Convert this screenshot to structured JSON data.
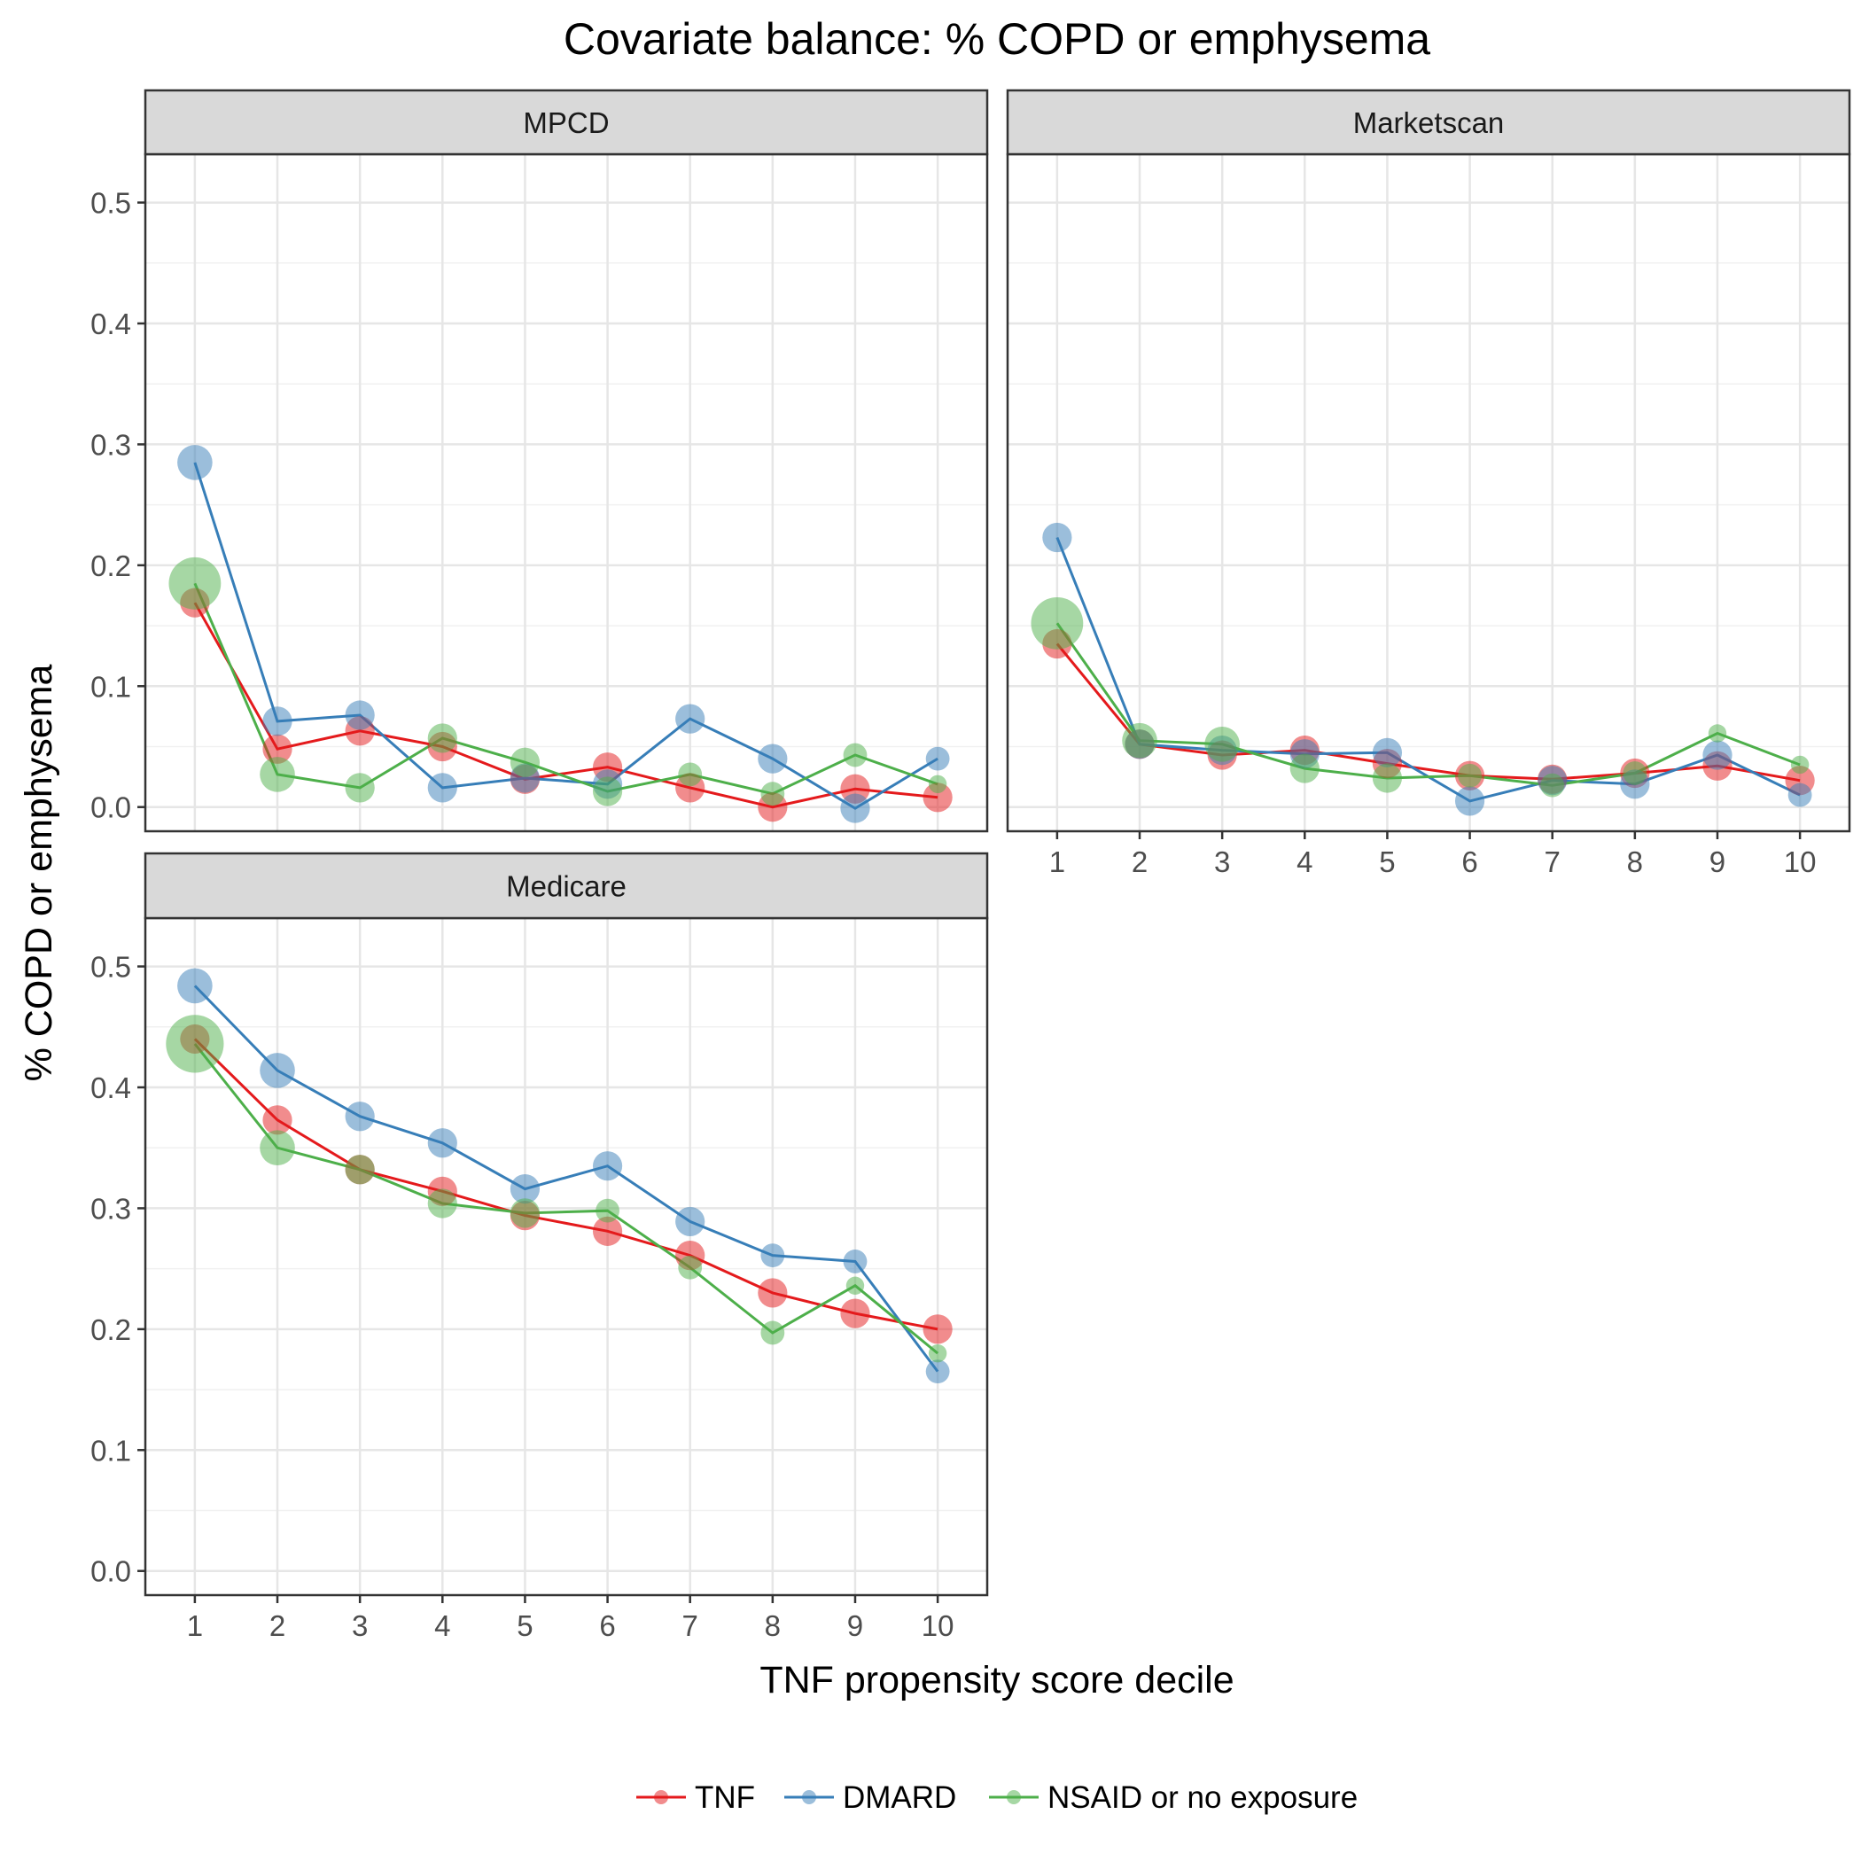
{
  "chart_data": {
    "type": "scatter",
    "title": "Covariate balance: % COPD or emphysema",
    "xlabel": "TNF propensity score decile",
    "ylabel": "% COPD or emphysema",
    "x": [
      1,
      2,
      3,
      4,
      5,
      6,
      7,
      8,
      9,
      10
    ],
    "x_tick_labels": [
      "1",
      "2",
      "3",
      "4",
      "5",
      "6",
      "7",
      "8",
      "9",
      "10"
    ],
    "ylim": [
      -0.02,
      0.54
    ],
    "y_ticks": [
      0.0,
      0.1,
      0.2,
      0.3,
      0.4,
      0.5
    ],
    "y_tick_labels": [
      "0.0",
      "0.1",
      "0.2",
      "0.3",
      "0.4",
      "0.5"
    ],
    "grid": true,
    "legend_position": "bottom",
    "colors": {
      "TNF": "#e41a1c",
      "DMARD": "#377eb8",
      "NSAID or no exposure": "#4daf4a"
    },
    "legend": [
      "TNF",
      "DMARD",
      "NSAID or no exposure"
    ],
    "panels": [
      {
        "name": "MPCD",
        "series": [
          {
            "name": "TNF",
            "values": [
              0.169,
              0.048,
              0.063,
              0.05,
              0.023,
              0.033,
              0.016,
              0.0,
              0.015,
              0.008
            ],
            "sizes": [
              3,
              3,
              3,
              3,
              3,
              3,
              3,
              3,
              3,
              3
            ]
          },
          {
            "name": "DMARD",
            "values": [
              0.285,
              0.071,
              0.076,
              0.016,
              0.024,
              0.019,
              0.073,
              0.04,
              -0.001,
              0.04
            ],
            "sizes": [
              4,
              3,
              3,
              3,
              3,
              3,
              3,
              3,
              3,
              2
            ]
          },
          {
            "name": "NSAID or no exposure",
            "values": [
              0.185,
              0.027,
              0.016,
              0.057,
              0.037,
              0.013,
              0.027,
              0.011,
              0.043,
              0.019
            ],
            "sizes": [
              7,
              4,
              3,
              3,
              3,
              3,
              2,
              2,
              2,
              1
            ]
          }
        ]
      },
      {
        "name": "Marketscan",
        "series": [
          {
            "name": "TNF",
            "values": [
              0.135,
              0.052,
              0.043,
              0.047,
              0.036,
              0.026,
              0.023,
              0.028,
              0.034,
              0.022
            ],
            "sizes": [
              3,
              3,
              3,
              3,
              3,
              3,
              3,
              3,
              3,
              3
            ]
          },
          {
            "name": "DMARD",
            "values": [
              0.223,
              0.052,
              0.047,
              0.044,
              0.045,
              0.005,
              0.022,
              0.019,
              0.043,
              0.01
            ],
            "sizes": [
              3,
              3,
              3,
              3,
              3,
              3,
              3,
              3,
              3,
              2
            ]
          },
          {
            "name": "NSAID or no exposure",
            "values": [
              0.152,
              0.055,
              0.052,
              0.032,
              0.024,
              0.026,
              0.018,
              0.028,
              0.061,
              0.035
            ],
            "sizes": [
              7,
              4,
              4,
              3,
              3,
              2,
              2,
              2,
              1,
              1
            ]
          }
        ]
      },
      {
        "name": "Medicare",
        "series": [
          {
            "name": "TNF",
            "values": [
              0.44,
              0.373,
              0.332,
              0.314,
              0.294,
              0.281,
              0.261,
              0.23,
              0.213,
              0.2
            ],
            "sizes": [
              3,
              3,
              3,
              3,
              3,
              3,
              3,
              3,
              3,
              3
            ]
          },
          {
            "name": "DMARD",
            "values": [
              0.484,
              0.414,
              0.376,
              0.354,
              0.316,
              0.335,
              0.289,
              0.261,
              0.256,
              0.165
            ],
            "sizes": [
              4,
              4,
              3,
              3,
              3,
              3,
              3,
              2,
              2,
              2
            ]
          },
          {
            "name": "NSAID or no exposure",
            "values": [
              0.436,
              0.35,
              0.332,
              0.304,
              0.296,
              0.298,
              0.251,
              0.197,
              0.236,
              0.18
            ],
            "sizes": [
              8,
              4,
              3,
              3,
              3,
              2,
              2,
              2,
              1,
              1
            ]
          }
        ]
      }
    ]
  }
}
